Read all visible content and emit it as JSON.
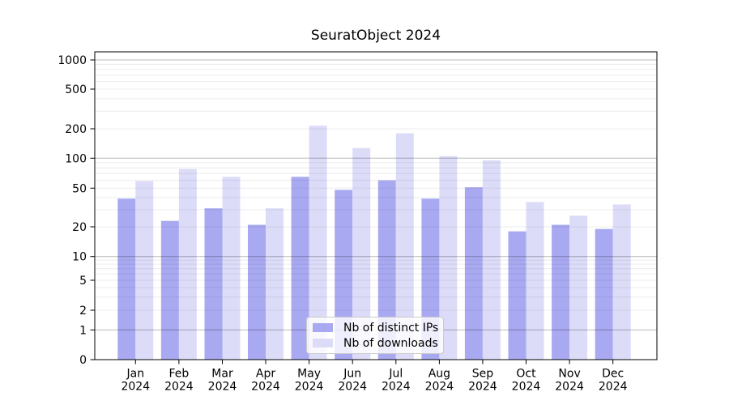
{
  "chart_data": {
    "type": "bar",
    "title": "SeuratObject 2024",
    "categories": [
      "Jan 2024",
      "Feb 2024",
      "Mar 2024",
      "Apr 2024",
      "May 2024",
      "Jun 2024",
      "Jul 2024",
      "Aug 2024",
      "Sep 2024",
      "Oct 2024",
      "Nov 2024",
      "Dec 2024"
    ],
    "series": [
      {
        "name": "Nb of distinct IPs",
        "color": "#a9a9f1",
        "values": [
          39,
          23,
          31,
          21,
          65,
          48,
          60,
          39,
          51,
          18,
          21,
          19
        ]
      },
      {
        "name": "Nb of downloads",
        "color": "#dcdcf8",
        "values": [
          59,
          78,
          65,
          31,
          215,
          127,
          180,
          105,
          95,
          36,
          26,
          34
        ]
      }
    ],
    "y_ticks": [
      0,
      1,
      2,
      5,
      10,
      20,
      50,
      100,
      200,
      500,
      1000
    ],
    "y_scale": "symlog",
    "ylim": [
      0,
      1400
    ],
    "xlabel": "",
    "ylabel": "",
    "grid": "horizontal major and minor gridlines, drawn over bars",
    "legend_position": "inside bottom-center"
  },
  "colors": {
    "background": "#ffffff",
    "axis": "#000000",
    "text": "#000000",
    "grid_minor": "rgba(0,0,0,0.075)",
    "grid_major": "rgba(0,0,0,0.28)",
    "legend_border": "#cccccc",
    "legend_background": "rgba(255,255,255,0.8)"
  }
}
